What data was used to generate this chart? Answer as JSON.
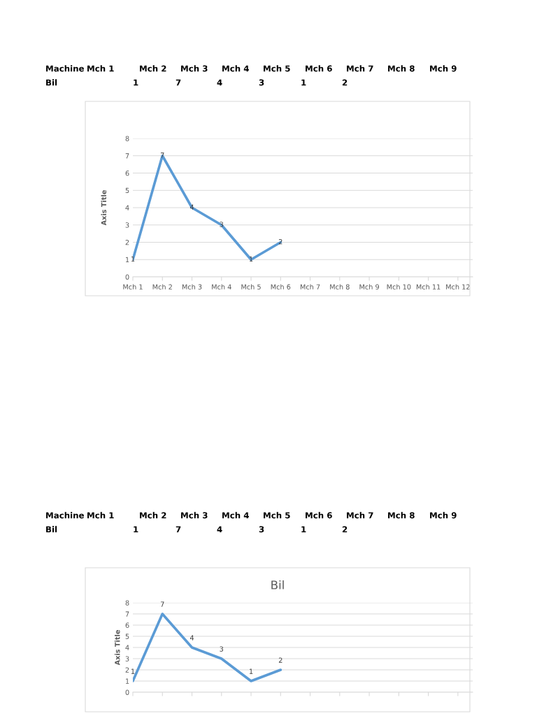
{
  "chart_data": [
    {
      "type": "line",
      "ylabel": "Axis Title",
      "categories": [
        "Mch 1",
        "Mch 2",
        "Mch 3",
        "Mch 4",
        "Mch 5",
        "Mch 6",
        "Mch 7",
        "Mch 8",
        "Mch 9",
        "Mch 10",
        "Mch 11",
        "Mch 12"
      ],
      "series": [
        {
          "color": "#5b9bd5",
          "values": [
            1,
            7,
            4,
            3,
            1,
            2,
            null,
            null,
            null,
            null,
            null,
            null
          ]
        }
      ],
      "ylim": [
        0,
        8
      ],
      "yticks": [
        0,
        1,
        2,
        3,
        4,
        5,
        6,
        7,
        8
      ],
      "grid": "y",
      "data_labels": true,
      "marker": "none",
      "line_style": "solid",
      "annotations": [
        "Machine",
        "Mch 1",
        "Mch 2",
        "Mch 3",
        "Mch 4",
        "Mch 5",
        "Mch 6",
        "Mch 7",
        "Mch 8",
        "Mch 9",
        "Bil",
        "1",
        "7",
        "4",
        "3",
        "1",
        "2"
      ]
    },
    {
      "type": "line",
      "title": "Bil",
      "ylabel": "Axis Title",
      "categories": [
        null,
        null,
        null,
        null,
        null,
        null,
        null,
        null,
        null,
        null,
        null,
        null
      ],
      "series": [
        {
          "color": "#5b9bd5",
          "values": [
            1,
            7,
            4,
            3,
            1,
            2,
            null,
            null,
            null,
            null,
            null,
            null
          ]
        }
      ],
      "ylim": [
        0,
        8
      ],
      "yticks": [
        0,
        1,
        2,
        3,
        4,
        5,
        6,
        7,
        8
      ],
      "grid": "y",
      "data_labels": true,
      "marker": "none",
      "line_style": "solid",
      "annotations": [
        "Machine",
        "Mch 1",
        "Mch 2",
        "Mch 3",
        "Mch 4",
        "Mch 5",
        "Mch 6",
        "Mch 7",
        "Mch 8",
        "Mch 9",
        "Bil",
        "1",
        "7",
        "4",
        "3",
        "1",
        "2"
      ]
    }
  ]
}
